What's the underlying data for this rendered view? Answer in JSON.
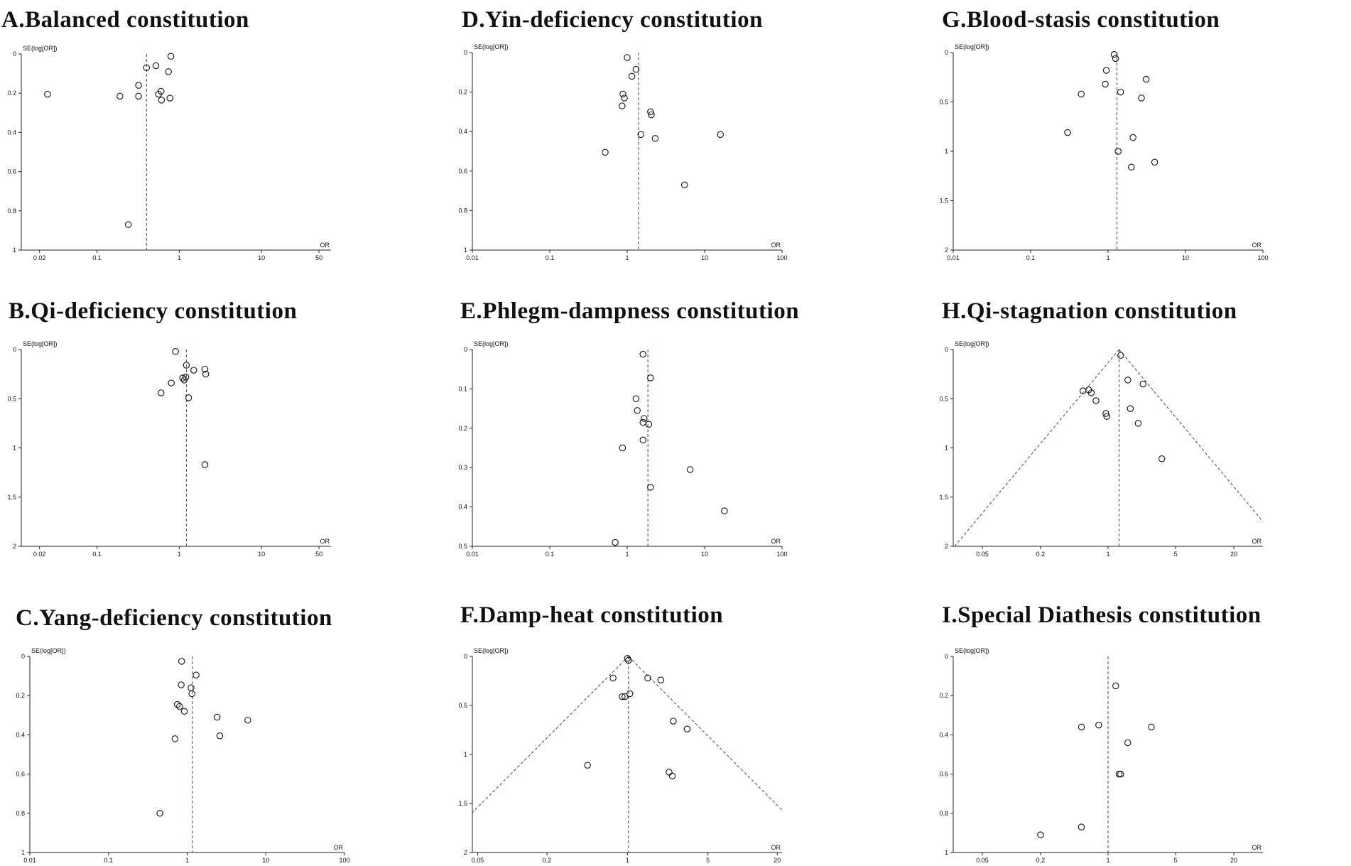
{
  "chart_data": [
    {
      "panel_id": "A",
      "type": "scatter",
      "title": "A.Balanced constitution",
      "xlabel": "OR",
      "ylabel": "SE(log[OR])",
      "x_scale": "log",
      "xlim": [
        0.012,
        70
      ],
      "x_ticks": [
        0.02,
        0.1,
        1,
        10,
        50
      ],
      "x_tick_labels": [
        "0.02",
        "0.1",
        "1",
        "10",
        "50"
      ],
      "ylim": [
        0,
        1
      ],
      "y_ticks": [
        0,
        0.2,
        0.4,
        0.6,
        0.8,
        1
      ],
      "y_tick_labels": [
        "0",
        "0.2",
        "0.4",
        "0.6",
        "0.8",
        "1"
      ],
      "pooled_or": 0.4,
      "funnel": false,
      "points": [
        {
          "or": 0.79,
          "se": 0.012
        },
        {
          "or": 0.52,
          "se": 0.06
        },
        {
          "or": 0.4,
          "se": 0.07
        },
        {
          "or": 0.74,
          "se": 0.09
        },
        {
          "or": 0.32,
          "se": 0.16
        },
        {
          "or": 0.6,
          "se": 0.19
        },
        {
          "or": 0.56,
          "se": 0.205
        },
        {
          "or": 0.025,
          "se": 0.205
        },
        {
          "or": 0.19,
          "se": 0.215
        },
        {
          "or": 0.32,
          "se": 0.215
        },
        {
          "or": 0.61,
          "se": 0.235
        },
        {
          "or": 0.77,
          "se": 0.225
        },
        {
          "or": 0.24,
          "se": 0.87
        }
      ]
    },
    {
      "panel_id": "B",
      "type": "scatter",
      "title": "B.Qi-deficiency constitution",
      "xlabel": "OR",
      "ylabel": "SE(log[OR])",
      "x_scale": "log",
      "xlim": [
        0.012,
        70
      ],
      "x_ticks": [
        0.02,
        0.1,
        1,
        10,
        50
      ],
      "x_tick_labels": [
        "0.02",
        "0.1",
        "1",
        "10",
        "50"
      ],
      "ylim": [
        0,
        2
      ],
      "y_ticks": [
        0,
        0.5,
        1,
        1.5,
        2
      ],
      "y_tick_labels": [
        "0",
        "0.5",
        "1",
        "1.5",
        "2"
      ],
      "pooled_or": 1.22,
      "funnel": false,
      "points": [
        {
          "or": 0.9,
          "se": 0.02
        },
        {
          "or": 1.22,
          "se": 0.16
        },
        {
          "or": 1.5,
          "se": 0.21
        },
        {
          "or": 2.05,
          "se": 0.2
        },
        {
          "or": 2.1,
          "se": 0.25
        },
        {
          "or": 1.1,
          "se": 0.29
        },
        {
          "or": 1.2,
          "se": 0.28
        },
        {
          "or": 1.15,
          "se": 0.31
        },
        {
          "or": 0.8,
          "se": 0.34
        },
        {
          "or": 0.6,
          "se": 0.44
        },
        {
          "or": 1.3,
          "se": 0.49
        },
        {
          "or": 2.05,
          "se": 1.17
        }
      ]
    },
    {
      "panel_id": "C",
      "type": "scatter",
      "title": "C.Yang-deficiency constitution",
      "xlabel": "OR",
      "ylabel": "SE(log[OR])",
      "x_scale": "log",
      "xlim": [
        0.01,
        100
      ],
      "x_ticks": [
        0.01,
        0.1,
        1,
        10,
        100
      ],
      "x_tick_labels": [
        "0.01",
        "0.1",
        "1",
        "10",
        "100"
      ],
      "ylim": [
        0,
        1
      ],
      "y_ticks": [
        0,
        0.2,
        0.4,
        0.6,
        0.8,
        1
      ],
      "y_tick_labels": [
        "0",
        "0.2",
        "0.4",
        "0.6",
        "0.8",
        "1"
      ],
      "pooled_or": 1.17,
      "funnel": false,
      "points": [
        {
          "or": 0.85,
          "se": 0.025
        },
        {
          "or": 1.3,
          "se": 0.095
        },
        {
          "or": 0.84,
          "se": 0.145
        },
        {
          "or": 1.12,
          "se": 0.16
        },
        {
          "or": 1.15,
          "se": 0.19
        },
        {
          "or": 0.75,
          "se": 0.245
        },
        {
          "or": 0.8,
          "se": 0.255
        },
        {
          "or": 0.92,
          "se": 0.28
        },
        {
          "or": 2.4,
          "se": 0.31
        },
        {
          "or": 5.9,
          "se": 0.325
        },
        {
          "or": 2.6,
          "se": 0.405
        },
        {
          "or": 0.7,
          "se": 0.42
        },
        {
          "or": 0.45,
          "se": 0.8
        }
      ]
    },
    {
      "panel_id": "D",
      "type": "scatter",
      "title": "D.Yin-deficiency constitution",
      "xlabel": "OR",
      "ylabel": "SE(log[OR])",
      "x_scale": "log",
      "xlim": [
        0.01,
        100
      ],
      "x_ticks": [
        0.01,
        0.1,
        1,
        10,
        100
      ],
      "x_tick_labels": [
        "0.01",
        "0.1",
        "1",
        "10",
        "100"
      ],
      "ylim": [
        0,
        1
      ],
      "y_ticks": [
        0,
        0.2,
        0.4,
        0.6,
        0.8,
        1
      ],
      "y_tick_labels": [
        "0",
        "0.2",
        "0.4",
        "0.6",
        "0.8",
        "1"
      ],
      "pooled_or": 1.4,
      "funnel": false,
      "points": [
        {
          "or": 1.0,
          "se": 0.025
        },
        {
          "or": 1.3,
          "se": 0.085
        },
        {
          "or": 1.15,
          "se": 0.12
        },
        {
          "or": 0.88,
          "se": 0.21
        },
        {
          "or": 0.92,
          "se": 0.23
        },
        {
          "or": 0.86,
          "se": 0.27
        },
        {
          "or": 2.0,
          "se": 0.3
        },
        {
          "or": 2.05,
          "se": 0.315
        },
        {
          "or": 1.5,
          "se": 0.415
        },
        {
          "or": 16,
          "se": 0.415
        },
        {
          "or": 2.3,
          "se": 0.435
        },
        {
          "or": 0.52,
          "se": 0.505
        },
        {
          "or": 5.5,
          "se": 0.67
        }
      ]
    },
    {
      "panel_id": "E",
      "type": "scatter",
      "title": "E.Phlegm-dampness constitution",
      "xlabel": "OR",
      "ylabel": "SE(log[OR])",
      "x_scale": "log",
      "xlim": [
        0.01,
        100
      ],
      "x_ticks": [
        0.01,
        0.1,
        1,
        10,
        100
      ],
      "x_tick_labels": [
        "0.01",
        "0.1",
        "1",
        "10",
        "100"
      ],
      "ylim": [
        0,
        0.5
      ],
      "y_ticks": [
        0,
        0.1,
        0.2,
        0.3,
        0.4,
        0.5
      ],
      "y_tick_labels": [
        "0",
        "0.1",
        "0.2",
        "0.3",
        "0.4",
        "0.5"
      ],
      "pooled_or": 1.85,
      "funnel": false,
      "points": [
        {
          "or": 1.6,
          "se": 0.012
        },
        {
          "or": 2.0,
          "se": 0.072
        },
        {
          "or": 1.3,
          "se": 0.125
        },
        {
          "or": 1.35,
          "se": 0.155
        },
        {
          "or": 1.65,
          "se": 0.175
        },
        {
          "or": 1.6,
          "se": 0.185
        },
        {
          "or": 1.9,
          "se": 0.19
        },
        {
          "or": 1.6,
          "se": 0.23
        },
        {
          "or": 0.87,
          "se": 0.25
        },
        {
          "or": 6.5,
          "se": 0.305
        },
        {
          "or": 2.0,
          "se": 0.35
        },
        {
          "or": 18,
          "se": 0.41
        },
        {
          "or": 0.7,
          "se": 0.49
        }
      ]
    },
    {
      "panel_id": "F",
      "type": "scatter",
      "title": "F.Damp-heat constitution",
      "xlabel": "OR",
      "ylabel": "SE(log[OR])",
      "x_scale": "log",
      "xlim": [
        0.045,
        22
      ],
      "x_ticks": [
        0.05,
        0.2,
        1,
        5,
        20
      ],
      "x_tick_labels": [
        "0.05",
        "0.2",
        "1",
        "5",
        "20"
      ],
      "ylim": [
        0,
        2
      ],
      "y_ticks": [
        0,
        0.5,
        1,
        1.5,
        2
      ],
      "y_tick_labels": [
        "0",
        "0.5",
        "1",
        "1.5",
        "2"
      ],
      "pooled_or": 1.02,
      "funnel": true,
      "points": [
        {
          "or": 1.0,
          "se": 0.02
        },
        {
          "or": 1.02,
          "se": 0.04
        },
        {
          "or": 0.75,
          "se": 0.22
        },
        {
          "or": 1.5,
          "se": 0.22
        },
        {
          "or": 1.95,
          "se": 0.24
        },
        {
          "or": 1.05,
          "se": 0.38
        },
        {
          "or": 0.9,
          "se": 0.41
        },
        {
          "or": 0.95,
          "se": 0.41
        },
        {
          "or": 2.5,
          "se": 0.66
        },
        {
          "or": 3.3,
          "se": 0.74
        },
        {
          "or": 0.45,
          "se": 1.11
        },
        {
          "or": 2.3,
          "se": 1.18
        },
        {
          "or": 2.45,
          "se": 1.22
        }
      ]
    },
    {
      "panel_id": "G",
      "type": "scatter",
      "title": "G.Blood-stasis constitution",
      "xlabel": "OR",
      "ylabel": "SE(log[OR])",
      "x_scale": "log",
      "xlim": [
        0.01,
        100
      ],
      "x_ticks": [
        0.01,
        0.1,
        1,
        10,
        100
      ],
      "x_tick_labels": [
        "0.01",
        "0.1",
        "1",
        "10",
        "100"
      ],
      "ylim": [
        0,
        2
      ],
      "y_ticks": [
        0,
        0.5,
        1,
        1.5,
        2
      ],
      "y_tick_labels": [
        "0",
        "0.5",
        "1",
        "1.5",
        "2"
      ],
      "pooled_or": 1.3,
      "funnel": false,
      "points": [
        {
          "or": 1.2,
          "se": 0.02
        },
        {
          "or": 1.25,
          "se": 0.06
        },
        {
          "or": 0.95,
          "se": 0.18
        },
        {
          "or": 3.1,
          "se": 0.27
        },
        {
          "or": 0.92,
          "se": 0.32
        },
        {
          "or": 0.45,
          "se": 0.42
        },
        {
          "or": 1.45,
          "se": 0.4
        },
        {
          "or": 2.7,
          "se": 0.46
        },
        {
          "or": 0.3,
          "se": 0.81
        },
        {
          "or": 2.1,
          "se": 0.86
        },
        {
          "or": 1.35,
          "se": 1.0
        },
        {
          "or": 4.0,
          "se": 1.11
        },
        {
          "or": 2.0,
          "se": 1.16
        }
      ]
    },
    {
      "panel_id": "H",
      "type": "scatter",
      "title": "H.Qi-stagnation constitution",
      "xlabel": "OR",
      "ylabel": "SE(log[OR])",
      "x_scale": "log",
      "xlim": [
        0.025,
        40
      ],
      "x_ticks": [
        0.05,
        0.2,
        1,
        5,
        20
      ],
      "x_tick_labels": [
        "0.05",
        "0.2",
        "1",
        "5",
        "20"
      ],
      "ylim": [
        0,
        2
      ],
      "y_ticks": [
        0,
        0.5,
        1,
        1.5,
        2
      ],
      "y_tick_labels": [
        "0",
        "0.5",
        "1",
        "1.5",
        "2"
      ],
      "pooled_or": 1.3,
      "funnel": true,
      "points": [
        {
          "or": 1.35,
          "se": 0.06
        },
        {
          "or": 1.6,
          "se": 0.31
        },
        {
          "or": 2.3,
          "se": 0.35
        },
        {
          "or": 0.55,
          "se": 0.42
        },
        {
          "or": 0.63,
          "se": 0.41
        },
        {
          "or": 0.67,
          "se": 0.44
        },
        {
          "or": 0.75,
          "se": 0.52
        },
        {
          "or": 1.7,
          "se": 0.6
        },
        {
          "or": 0.95,
          "se": 0.65
        },
        {
          "or": 0.97,
          "se": 0.68
        },
        {
          "or": 2.05,
          "se": 0.75
        },
        {
          "or": 3.6,
          "se": 1.11
        }
      ]
    },
    {
      "panel_id": "I",
      "type": "scatter",
      "title": "I.Special Diathesis constitution",
      "xlabel": "OR",
      "ylabel": "SE(log[OR])",
      "x_scale": "log",
      "xlim": [
        0.025,
        40
      ],
      "x_ticks": [
        0.05,
        0.2,
        1,
        5,
        20
      ],
      "x_tick_labels": [
        "0.05",
        "0.2",
        "1",
        "5",
        "20"
      ],
      "ylim": [
        0,
        1
      ],
      "y_ticks": [
        0,
        0.2,
        0.4,
        0.6,
        0.8,
        1
      ],
      "y_tick_labels": [
        "0",
        "0.2",
        "0.4",
        "0.6",
        "0.8",
        "1"
      ],
      "pooled_or": 1.0,
      "funnel": false,
      "points": [
        {
          "or": 1.2,
          "se": 0.15
        },
        {
          "or": 0.8,
          "se": 0.35
        },
        {
          "or": 0.53,
          "se": 0.36
        },
        {
          "or": 2.8,
          "se": 0.36
        },
        {
          "or": 1.6,
          "se": 0.44
        },
        {
          "or": 1.3,
          "se": 0.6
        },
        {
          "or": 1.35,
          "se": 0.6
        },
        {
          "or": 0.53,
          "se": 0.87
        },
        {
          "or": 0.2,
          "se": 0.91
        }
      ]
    }
  ]
}
